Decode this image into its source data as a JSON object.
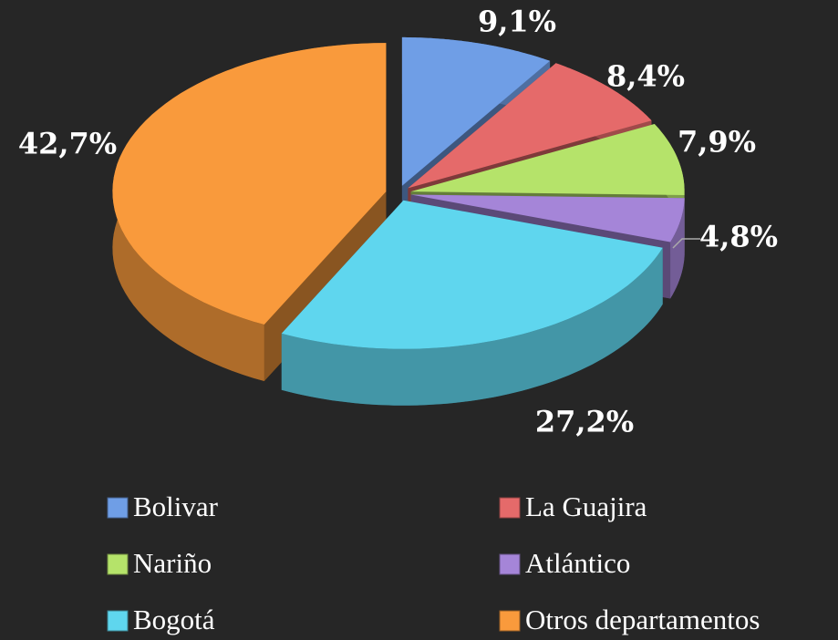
{
  "chart_data": {
    "type": "pie",
    "categories": [
      "Bolivar",
      "La Guajira",
      "Nariño",
      "Atlántico",
      "Bogotá",
      "Otros departamentos"
    ],
    "values": [
      9.1,
      8.4,
      7.9,
      4.8,
      27.2,
      42.7
    ],
    "value_labels": [
      "9,1%",
      "8,4%",
      "7,9%",
      "4,8%",
      "27,2%",
      "42,7%"
    ],
    "colors": [
      "#6f9ee6",
      "#e56a6a",
      "#b5e36a",
      "#a585d8",
      "#5fd6ee",
      "#f99a3c"
    ],
    "legend": "bottom"
  }
}
